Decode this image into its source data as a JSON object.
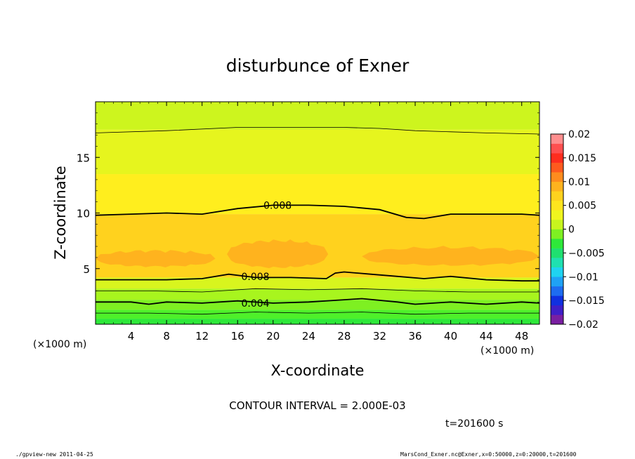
{
  "chart_data": {
    "type": "heatmap",
    "title": "disturbunce of Exner",
    "xlabel": "X-coordinate",
    "ylabel": "Z-coordinate",
    "x_unit_left": "(×1000 m)",
    "x_unit_right": "(×1000 m)",
    "xlim": [
      0,
      50
    ],
    "ylim": [
      0,
      20
    ],
    "x_ticks": [
      4,
      8,
      12,
      16,
      20,
      24,
      28,
      32,
      36,
      40,
      44,
      48
    ],
    "y_ticks": [
      5,
      10,
      15
    ],
    "contour_interval_label": "CONTOUR INTERVAL = 2.000E-03",
    "time_label": "t=201600 s",
    "colorbar": {
      "min": -0.02,
      "max": 0.02,
      "tick_labels": [
        "0.02",
        "0.015",
        "0.01",
        "0.005",
        "0",
        "−0.005",
        "−0.01",
        "−0.015",
        "−0.02"
      ],
      "colors": [
        "#7a1fa2",
        "#3f1fc8",
        "#1030e0",
        "#1e6cf0",
        "#1fa2f5",
        "#1fd3f0",
        "#1fe0b0",
        "#1fe070",
        "#2ee83a",
        "#7ef022",
        "#c8f51e",
        "#f0f51e",
        "#ffe51e",
        "#ffd21e",
        "#ffb31e",
        "#ff8c1e",
        "#ff5a1e",
        "#ff2d1e",
        "#ff5050",
        "#ff8e8e"
      ]
    },
    "contour_labels": [
      {
        "text": "0.008",
        "x": 20.5,
        "y": 10.7
      },
      {
        "text": "0.008",
        "x": 18.0,
        "y": 4.3
      },
      {
        "text": "0.004",
        "x": 18.0,
        "y": 1.9
      }
    ],
    "bands": [
      {
        "z_bottom": 0.0,
        "z_top": 0.5,
        "value": 0.001,
        "color": "#2ee83a"
      },
      {
        "z_bottom": 0.5,
        "z_top": 1.3,
        "value": 0.003,
        "color": "#4ef02a"
      },
      {
        "z_bottom": 1.3,
        "z_top": 2.2,
        "value": 0.004,
        "color": "#7ef022"
      },
      {
        "z_bottom": 2.2,
        "z_top": 3.2,
        "value": 0.006,
        "color": "#a8f51e"
      },
      {
        "z_bottom": 3.2,
        "z_top": 4.2,
        "value": 0.007,
        "color": "#d8f51e"
      },
      {
        "z_bottom": 4.2,
        "z_top": 9.9,
        "value": 0.009,
        "color": "#ffd21e"
      },
      {
        "z_bottom": 9.9,
        "z_top": 13.5,
        "value": 0.008,
        "color": "#ffee1e"
      },
      {
        "z_bottom": 13.5,
        "z_top": 17.5,
        "value": 0.006,
        "color": "#e6f51e"
      },
      {
        "z_bottom": 17.5,
        "z_top": 20.0,
        "value": 0.005,
        "color": "#cdf51e"
      }
    ],
    "high_patches": [
      {
        "x_from": 0.0,
        "x_to": 13.5,
        "z_center": 5.9,
        "half_height": 0.7,
        "value": 0.01,
        "color": "#ffb31e"
      },
      {
        "x_from": 14.8,
        "x_to": 26.2,
        "z_center": 6.3,
        "half_height": 1.2,
        "value": 0.01,
        "color": "#ffb31e"
      },
      {
        "x_from": 30.0,
        "x_to": 50.0,
        "z_center": 6.1,
        "half_height": 0.8,
        "value": 0.01,
        "color": "#ffb31e"
      }
    ],
    "contours": [
      {
        "x": [
          0,
          8,
          16,
          20,
          24,
          28,
          32,
          36,
          40,
          44,
          50
        ],
        "z": [
          17.2,
          17.4,
          17.7,
          17.7,
          17.7,
          17.7,
          17.6,
          17.4,
          17.3,
          17.2,
          17.1
        ],
        "weight": "thin"
      },
      {
        "x": [
          0,
          4,
          8,
          12,
          16,
          20,
          24,
          28,
          32,
          35,
          37,
          40,
          44,
          48,
          50
        ],
        "z": [
          9.8,
          9.9,
          10.0,
          9.9,
          10.4,
          10.7,
          10.7,
          10.6,
          10.3,
          9.6,
          9.5,
          9.9,
          9.9,
          9.9,
          9.8
        ],
        "weight": "thick"
      },
      {
        "x": [
          0,
          4,
          8,
          12,
          15,
          18,
          22,
          26,
          27,
          28,
          31,
          34,
          37,
          40,
          44,
          48,
          50
        ],
        "z": [
          4.0,
          4.0,
          4.0,
          4.1,
          4.5,
          4.2,
          4.2,
          4.1,
          4.6,
          4.7,
          4.5,
          4.3,
          4.1,
          4.3,
          4.0,
          3.9,
          3.9
        ],
        "weight": "thick"
      },
      {
        "x": [
          0,
          6,
          12,
          18,
          24,
          30,
          36,
          42,
          50
        ],
        "z": [
          3.0,
          3.0,
          2.9,
          3.2,
          3.1,
          3.2,
          3.0,
          2.9,
          2.9
        ],
        "weight": "thin"
      },
      {
        "x": [
          0,
          4,
          6,
          8,
          12,
          16,
          20,
          24,
          28,
          30,
          34,
          36,
          40,
          44,
          48,
          50
        ],
        "z": [
          2.0,
          2.0,
          1.8,
          2.0,
          1.9,
          2.1,
          1.9,
          2.0,
          2.2,
          2.3,
          2.0,
          1.8,
          2.0,
          1.8,
          2.0,
          1.9
        ],
        "weight": "thick"
      },
      {
        "x": [
          0,
          6,
          12,
          18,
          24,
          30,
          36,
          42,
          50
        ],
        "z": [
          1.0,
          1.0,
          0.9,
          1.1,
          1.0,
          1.1,
          0.9,
          1.0,
          1.0
        ],
        "weight": "thin"
      }
    ]
  },
  "footer": {
    "left": "./gpview-new   2011-04-25",
    "right": "MarsCond_Exner.nc@Exner,x=0:50000,z=0:20000,t=201600"
  }
}
